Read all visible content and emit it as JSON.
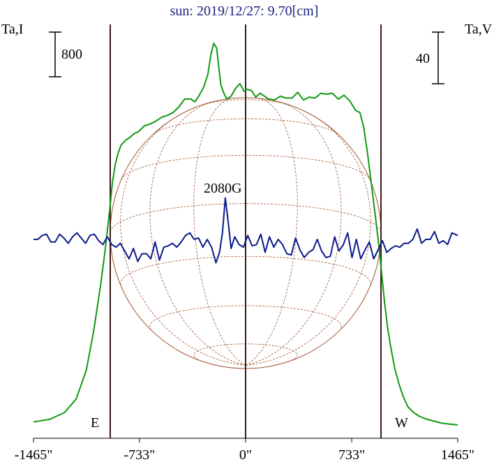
{
  "chart_data": {
    "type": "line",
    "title": "sun: 2019/12/27: 9.70[cm]",
    "left_axis_label": "Ta,I",
    "right_axis_label": "Ta,V",
    "left_scale_bar_label": "800",
    "right_scale_bar_label": "40",
    "annotation": "2080G",
    "limb_labels": {
      "east": "E",
      "west": "W"
    },
    "x_unit": "arcsec",
    "xlim": [
      -1465,
      1465
    ],
    "x_ticks": [
      {
        "value": -1465,
        "label": "-1465\""
      },
      {
        "value": -733,
        "label": "-733\""
      },
      {
        "value": 0,
        "label": "0\""
      },
      {
        "value": 733,
        "label": "733\""
      },
      {
        "value": 1465,
        "label": "1465\""
      }
    ],
    "vertical_markers": [
      -935,
      0,
      935
    ],
    "solar_disk": {
      "radius_arcsec": 935,
      "grid_lines": 8
    },
    "colors": {
      "title": "#1a237e",
      "stokes_i": "#119911",
      "stokes_v": "#0b1a8c",
      "disk": "#a0522d",
      "markers": "#3a1a1a"
    },
    "series": [
      {
        "name": "Stokes I",
        "axis": "left",
        "x": [
          -1465,
          -1350,
          -1250,
          -1170,
          -1100,
          -1050,
          -1000,
          -970,
          -940,
          -920,
          -900,
          -880,
          -860,
          -830,
          -800,
          -770,
          -740,
          -700,
          -660,
          -620,
          -580,
          -540,
          -500,
          -460,
          -420,
          -380,
          -350,
          -320,
          -290,
          -260,
          -240,
          -220,
          -200,
          -185,
          -170,
          -150,
          -130,
          -100,
          -70,
          -40,
          -10,
          10,
          40,
          70,
          100,
          130,
          160,
          200,
          240,
          280,
          320,
          360,
          400,
          440,
          480,
          520,
          560,
          600,
          640,
          680,
          720,
          760,
          790,
          815,
          840,
          860,
          880,
          900,
          920,
          940,
          960,
          980,
          1000,
          1030,
          1060,
          1090,
          1120,
          1160,
          1200,
          1250,
          1300,
          1350,
          1400,
          1465
        ],
        "y": [
          60,
          90,
          160,
          300,
          600,
          1000,
          1500,
          1850,
          2250,
          2550,
          2740,
          2860,
          2940,
          2990,
          3020,
          3060,
          3080,
          3140,
          3160,
          3190,
          3230,
          3250,
          3280,
          3340,
          3420,
          3420,
          3390,
          3460,
          3540,
          3680,
          3880,
          4000,
          3950,
          3750,
          3560,
          3480,
          3420,
          3450,
          3530,
          3580,
          3500,
          3520,
          3510,
          3440,
          3480,
          3450,
          3420,
          3410,
          3450,
          3430,
          3430,
          3490,
          3410,
          3440,
          3430,
          3480,
          3470,
          3480,
          3420,
          3460,
          3400,
          3300,
          3280,
          3130,
          2880,
          2640,
          2400,
          2150,
          1900,
          1600,
          1300,
          1050,
          860,
          620,
          450,
          320,
          220,
          160,
          120,
          90,
          70,
          50,
          40,
          30
        ]
      },
      {
        "name": "Stokes V",
        "axis": "right",
        "x": [
          -1465,
          -1435,
          -1405,
          -1375,
          -1345,
          -1315,
          -1285,
          -1255,
          -1225,
          -1195,
          -1165,
          -1135,
          -1105,
          -1075,
          -1045,
          -1015,
          -985,
          -955,
          -925,
          -895,
          -865,
          -835,
          -805,
          -775,
          -745,
          -715,
          -685,
          -655,
          -625,
          -595,
          -565,
          -535,
          -505,
          -475,
          -445,
          -415,
          -385,
          -355,
          -325,
          -295,
          -265,
          -235,
          -205,
          -180,
          -160,
          -140,
          -120,
          -100,
          -75,
          -45,
          -15,
          15,
          45,
          75,
          105,
          135,
          165,
          195,
          225,
          255,
          285,
          315,
          345,
          375,
          405,
          435,
          465,
          495,
          525,
          555,
          585,
          615,
          645,
          675,
          705,
          735,
          765,
          795,
          825,
          855,
          885,
          915,
          945,
          975,
          1005,
          1035,
          1065,
          1095,
          1125,
          1155,
          1185,
          1215,
          1245,
          1275,
          1305,
          1335,
          1365,
          1395,
          1425,
          1465
        ],
        "y": [
          0,
          0,
          3,
          4,
          -2,
          -2,
          4,
          1,
          -3,
          2,
          5,
          1,
          -3,
          3,
          4,
          -1,
          -4,
          2,
          -4,
          -6,
          -3,
          -9,
          -15,
          -7,
          -17,
          -11,
          -11,
          -15,
          -2,
          -16,
          -6,
          -5,
          -3,
          -6,
          -2,
          3,
          5,
          0,
          1,
          -6,
          0,
          -6,
          -18,
          -10,
          5,
          32,
          13,
          -7,
          2,
          -4,
          -6,
          3,
          -5,
          -4,
          4,
          -10,
          2,
          -6,
          0,
          -4,
          -11,
          -12,
          1,
          -8,
          -14,
          -10,
          -8,
          0,
          -9,
          -14,
          -13,
          2,
          -9,
          -4,
          5,
          -14,
          0,
          -15,
          -8,
          -2,
          -15,
          -8,
          -1,
          -10,
          -7,
          -5,
          -6,
          -3,
          -3,
          0,
          8,
          -3,
          0,
          0,
          6,
          -3,
          -1,
          -4,
          5,
          3
        ]
      }
    ]
  }
}
